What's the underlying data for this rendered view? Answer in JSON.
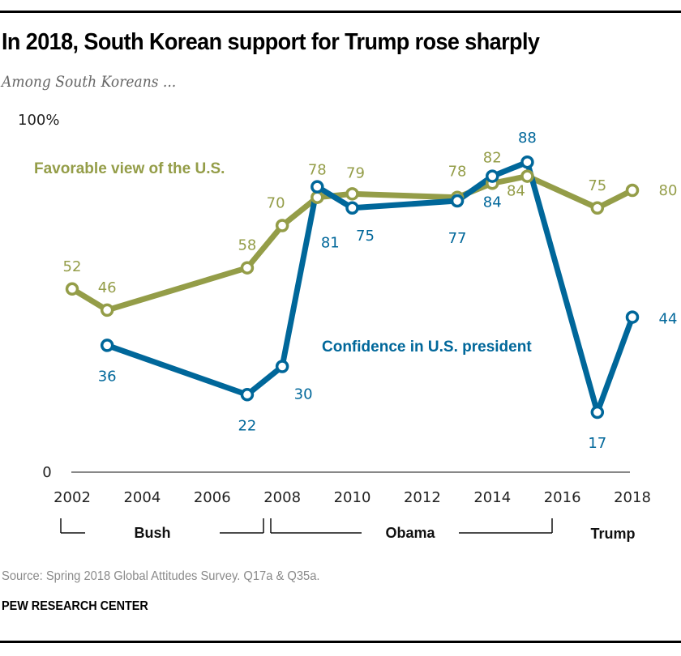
{
  "header": {
    "title": "In 2018, South Korean support for Trump rose sharply",
    "subtitle": "Among South Koreans ..."
  },
  "footer": {
    "source": "Source: Spring 2018 Global Attitudes Survey. Q17a & Q35a.",
    "brand": "PEW RESEARCH CENTER"
  },
  "colors": {
    "favorable": "#949d48",
    "confidence": "#00679a",
    "axis": "#888888"
  },
  "chart_data": {
    "type": "line",
    "title": "In 2018, South Korean support for Trump rose sharply",
    "subtitle": "Among South Koreans ...",
    "xlabel": "",
    "ylabel": "",
    "ylim": [
      0,
      100
    ],
    "xlim": [
      2002,
      2018
    ],
    "y_tick_labels": [
      {
        "value": 100,
        "label": "100%"
      },
      {
        "value": 0,
        "label": "0"
      }
    ],
    "x_ticks": [
      2002,
      2004,
      2006,
      2008,
      2010,
      2012,
      2014,
      2016,
      2018
    ],
    "grid": false,
    "legend": "inline labels",
    "series": [
      {
        "name": "Favorable view of the U.S.",
        "color": "#949d48",
        "points": [
          {
            "x": 2002,
            "y": 52
          },
          {
            "x": 2003,
            "y": 46
          },
          {
            "x": 2007,
            "y": 58
          },
          {
            "x": 2008,
            "y": 70
          },
          {
            "x": 2009,
            "y": 78
          },
          {
            "x": 2010,
            "y": 79
          },
          {
            "x": 2013,
            "y": 78
          },
          {
            "x": 2014,
            "y": 82
          },
          {
            "x": 2015,
            "y": 84
          },
          {
            "x": 2017,
            "y": 75
          },
          {
            "x": 2018,
            "y": 80
          }
        ]
      },
      {
        "name": "Confidence in U.S. president",
        "color": "#00679a",
        "points": [
          {
            "x": 2003,
            "y": 36
          },
          {
            "x": 2007,
            "y": 22
          },
          {
            "x": 2008,
            "y": 30
          },
          {
            "x": 2009,
            "y": 81
          },
          {
            "x": 2010,
            "y": 75
          },
          {
            "x": 2013,
            "y": 77
          },
          {
            "x": 2014,
            "y": 84
          },
          {
            "x": 2015,
            "y": 88
          },
          {
            "x": 2017,
            "y": 17
          },
          {
            "x": 2018,
            "y": 44
          }
        ]
      }
    ],
    "annotations": [
      {
        "label": "Bush",
        "from": 2002,
        "to": 2008
      },
      {
        "label": "Obama",
        "from": 2008,
        "to": 2016
      },
      {
        "label": "Trump",
        "from": 2017,
        "to": 2018
      }
    ]
  }
}
